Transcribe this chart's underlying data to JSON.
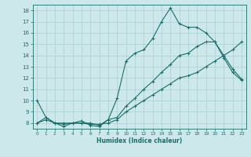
{
  "xlabel": "Humidex (Indice chaleur)",
  "xlim": [
    -0.5,
    23.5
  ],
  "ylim": [
    7.5,
    18.5
  ],
  "yticks": [
    8,
    9,
    10,
    11,
    12,
    13,
    14,
    15,
    16,
    17,
    18
  ],
  "xticks": [
    0,
    1,
    2,
    3,
    4,
    5,
    6,
    7,
    8,
    9,
    10,
    11,
    12,
    13,
    14,
    15,
    16,
    17,
    18,
    19,
    20,
    21,
    22,
    23
  ],
  "background_color": "#cde8ea",
  "line_color": "#1a6e6a",
  "grid_color": "#aacfd2",
  "line1_x": [
    0,
    1,
    2,
    3,
    4,
    5,
    6,
    7,
    8,
    9,
    10,
    11,
    12,
    13,
    14,
    15,
    16,
    17,
    18,
    19,
    20,
    21,
    22,
    23
  ],
  "line1_y": [
    10.0,
    8.5,
    8.0,
    7.7,
    8.0,
    8.2,
    7.8,
    7.7,
    8.3,
    10.2,
    13.5,
    14.2,
    14.5,
    15.5,
    17.0,
    18.2,
    16.8,
    16.5,
    16.5,
    16.0,
    15.2,
    13.8,
    12.5,
    11.8
  ],
  "line2_x": [
    0,
    1,
    2,
    3,
    4,
    5,
    6,
    7,
    8,
    9,
    10,
    11,
    12,
    13,
    14,
    15,
    16,
    17,
    18,
    19,
    20,
    21,
    22,
    23
  ],
  "line2_y": [
    8.0,
    8.5,
    8.0,
    8.0,
    8.0,
    8.0,
    8.0,
    7.8,
    8.3,
    8.5,
    9.5,
    10.2,
    11.0,
    11.7,
    12.5,
    13.2,
    14.0,
    14.2,
    14.8,
    15.2,
    15.2,
    14.0,
    12.8,
    11.9
  ],
  "line3_x": [
    0,
    1,
    2,
    3,
    4,
    5,
    6,
    7,
    8,
    9,
    10,
    11,
    12,
    13,
    14,
    15,
    16,
    17,
    18,
    19,
    20,
    21,
    22,
    23
  ],
  "line3_y": [
    8.0,
    8.3,
    8.0,
    7.9,
    8.0,
    8.0,
    7.9,
    7.9,
    8.0,
    8.3,
    9.0,
    9.5,
    10.0,
    10.5,
    11.0,
    11.5,
    12.0,
    12.2,
    12.5,
    13.0,
    13.5,
    14.0,
    14.5,
    15.2
  ]
}
